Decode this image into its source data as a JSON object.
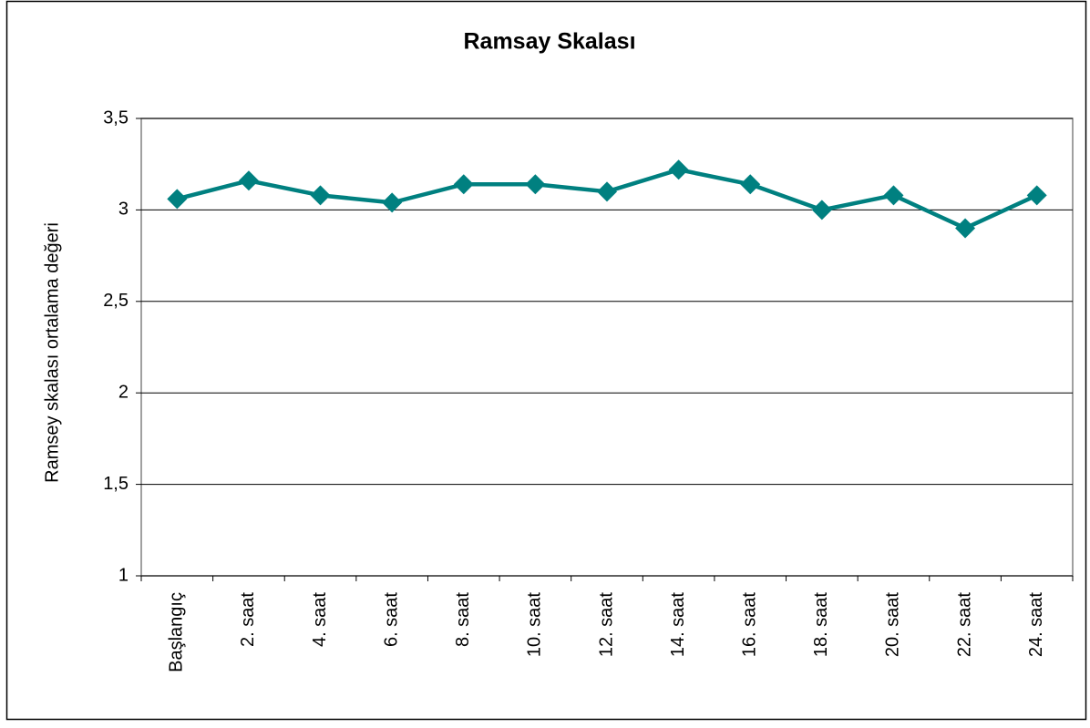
{
  "chart_data": {
    "type": "line",
    "title": "Ramsay Skalası",
    "y_label": "Ramsey skalası ortalama değeri",
    "categories": [
      "Başlangıç",
      "2. saat",
      "4. saat",
      "6. saat",
      "8. saat",
      "10. saat",
      "12. saat",
      "14. saat",
      "16. saat",
      "18. saat",
      "20. saat",
      "22. saat",
      "24. saat"
    ],
    "values": [
      3.06,
      3.16,
      3.08,
      3.04,
      3.14,
      3.14,
      3.1,
      3.22,
      3.14,
      3.0,
      3.08,
      2.9,
      3.08
    ],
    "color": "#008080",
    "ylim": [
      1,
      3.5
    ],
    "yticks": [
      1,
      {
        "value": 1.5,
        "label": "1,5"
      },
      2,
      {
        "value": 2.5,
        "label": "2,5"
      },
      3,
      {
        "value": 3.5,
        "label": "3,5"
      }
    ],
    "grid": true
  }
}
